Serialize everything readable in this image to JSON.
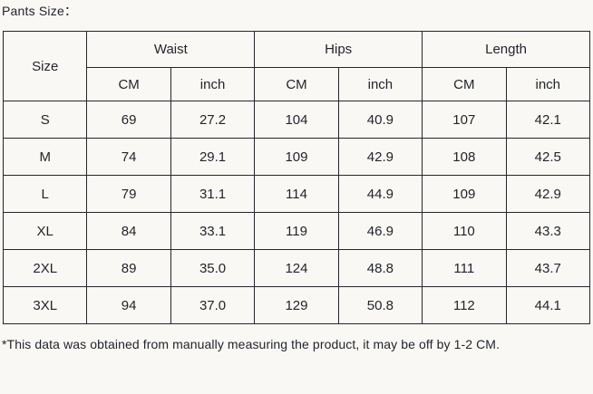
{
  "page": {
    "title": "Pants Size：",
    "footnote": "*This data was obtained from manually measuring the product, it may be off by 1-2 CM."
  },
  "colors": {
    "background": "#faf8f4",
    "border": "#26262b",
    "text": "#22252c"
  },
  "table": {
    "size_header": "Size",
    "groups": [
      {
        "label": "Waist"
      },
      {
        "label": "Hips"
      },
      {
        "label": "Length"
      }
    ],
    "unit_headers": [
      "CM",
      "inch",
      "CM",
      "inch",
      "CM",
      "inch"
    ],
    "rows": [
      {
        "size": "S",
        "values": [
          "69",
          "27.2",
          "104",
          "40.9",
          "107",
          "42.1"
        ]
      },
      {
        "size": "M",
        "values": [
          "74",
          "29.1",
          "109",
          "42.9",
          "108",
          "42.5"
        ]
      },
      {
        "size": "L",
        "values": [
          "79",
          "31.1",
          "114",
          "44.9",
          "109",
          "42.9"
        ]
      },
      {
        "size": "XL",
        "values": [
          "84",
          "33.1",
          "119",
          "46.9",
          "110",
          "43.3"
        ]
      },
      {
        "size": "2XL",
        "values": [
          "89",
          "35.0",
          "124",
          "48.8",
          "111",
          "43.7"
        ]
      },
      {
        "size": "3XL",
        "values": [
          "94",
          "37.0",
          "129",
          "50.8",
          "112",
          "44.1"
        ]
      }
    ]
  }
}
